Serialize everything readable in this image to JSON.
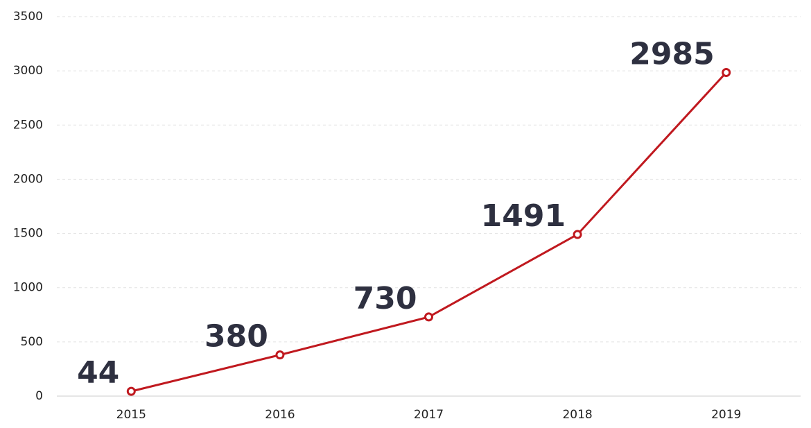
{
  "chart_data": {
    "type": "line",
    "categories": [
      "2015",
      "2016",
      "2017",
      "2018",
      "2019"
    ],
    "series": [
      {
        "name": "value",
        "color": "#c0191f",
        "values": [
          44,
          380,
          730,
          1491,
          2985
        ]
      }
    ],
    "ylim": [
      0,
      3500
    ],
    "yticks": [
      0,
      500,
      1000,
      1500,
      2000,
      2500,
      3000,
      3500
    ],
    "grid": true
  }
}
